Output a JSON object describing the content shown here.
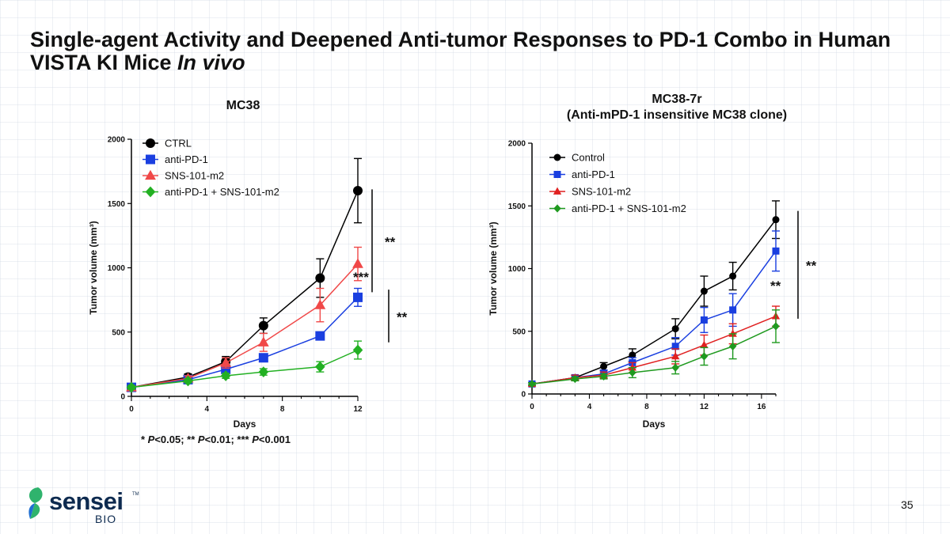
{
  "slide": {
    "title_main": "Single-agent Activity and Deepened Anti-tumor Responses to PD-1 Combo in Human VISTA KI Mice ",
    "title_italic": "In vivo",
    "pvalue_parts": [
      "* ",
      "P",
      "<0.05; ** ",
      "P",
      "<0.01; *** ",
      "P",
      "<0.001"
    ],
    "page_number": "35",
    "logo": {
      "word": "sensei",
      "tm": "TM",
      "sub": "BIO",
      "colors": {
        "dark": "#0d2a4f",
        "green": "#2fb36d",
        "blue": "#1f6fd1"
      }
    }
  },
  "chart_data": [
    {
      "type": "line",
      "title": "MC38",
      "xlabel": "Days",
      "ylabel": "Tumor volume (mm³)",
      "xlim": [
        0,
        12
      ],
      "ylim": [
        0,
        2000
      ],
      "xticks": [
        "0",
        "4",
        "8",
        "12"
      ],
      "yticks": [
        "0",
        "500",
        "1000",
        "1500",
        "2000"
      ],
      "legend_position": "top-left",
      "series": [
        {
          "name": "CTRL",
          "color": "#000000",
          "marker": "circle",
          "x": [
            0,
            3,
            5,
            7,
            10,
            12
          ],
          "y": [
            70,
            150,
            270,
            550,
            920,
            1600
          ],
          "err": [
            15,
            25,
            40,
            60,
            150,
            250
          ]
        },
        {
          "name": "anti-PD-1",
          "color": "#1a3fe0",
          "marker": "square",
          "x": [
            0,
            3,
            5,
            7,
            10,
            12
          ],
          "y": [
            70,
            130,
            210,
            300,
            470,
            770
          ],
          "err": [
            15,
            20,
            30,
            30,
            30,
            70
          ]
        },
        {
          "name": "SNS-101-m2",
          "color": "#f04848",
          "marker": "triangle",
          "x": [
            0,
            3,
            5,
            7,
            10,
            12
          ],
          "y": [
            70,
            140,
            260,
            420,
            710,
            1030
          ],
          "err": [
            15,
            20,
            40,
            70,
            130,
            130
          ]
        },
        {
          "name": "anti-PD-1 + SNS-101-m2",
          "color": "#22b022",
          "marker": "diamond",
          "x": [
            0,
            3,
            5,
            7,
            10,
            12
          ],
          "y": [
            70,
            120,
            160,
            190,
            230,
            360
          ],
          "err": [
            15,
            15,
            20,
            25,
            40,
            70
          ]
        }
      ],
      "annotations": [
        {
          "text": "**",
          "bracket_y": [
            1610,
            810
          ]
        },
        {
          "text": "***",
          "at": [
            12,
            920
          ]
        },
        {
          "text": "**",
          "bracket_y": [
            830,
            420
          ]
        }
      ]
    },
    {
      "type": "line",
      "title": "MC38-7r",
      "subtitle": "(Anti-mPD-1 insensitive MC38 clone)",
      "xlabel": "Days",
      "ylabel": "Tumor volume (mm³)",
      "xlim": [
        0,
        17
      ],
      "ylim": [
        0,
        2000
      ],
      "xticks": [
        "0",
        "4",
        "8",
        "12",
        "16"
      ],
      "yticks": [
        "0",
        "500",
        "1000",
        "1500",
        "2000"
      ],
      "legend_position": "top-left",
      "series": [
        {
          "name": "Control",
          "color": "#000000",
          "marker": "circle",
          "x": [
            0,
            3,
            5,
            7,
            10,
            12,
            14,
            17
          ],
          "y": [
            80,
            130,
            220,
            310,
            520,
            820,
            940,
            1390
          ],
          "err": [
            10,
            20,
            30,
            50,
            80,
            120,
            110,
            150
          ]
        },
        {
          "name": "anti-PD-1",
          "color": "#1a3fe0",
          "marker": "square",
          "x": [
            0,
            3,
            5,
            7,
            10,
            12,
            14,
            17
          ],
          "y": [
            80,
            130,
            160,
            250,
            380,
            590,
            670,
            1140
          ],
          "err": [
            10,
            20,
            30,
            40,
            70,
            100,
            130,
            160
          ]
        },
        {
          "name": "SNS-101-m2",
          "color": "#e02020",
          "marker": "triangle",
          "x": [
            0,
            3,
            5,
            7,
            10,
            12,
            14,
            17
          ],
          "y": [
            80,
            130,
            150,
            210,
            300,
            390,
            480,
            620
          ],
          "err": [
            10,
            20,
            25,
            40,
            60,
            80,
            80,
            80
          ]
        },
        {
          "name": "anti-PD-1 + SNS-101-m2",
          "color": "#1f9a1f",
          "marker": "diamond",
          "x": [
            0,
            3,
            5,
            7,
            10,
            12,
            14,
            17
          ],
          "y": [
            80,
            120,
            140,
            170,
            210,
            300,
            380,
            540
          ],
          "err": [
            10,
            15,
            20,
            40,
            50,
            70,
            100,
            130
          ]
        }
      ],
      "annotations": [
        {
          "text": "**",
          "bracket_y": [
            1460,
            600
          ]
        },
        {
          "text": "**",
          "at": [
            17,
            870
          ]
        }
      ]
    }
  ]
}
